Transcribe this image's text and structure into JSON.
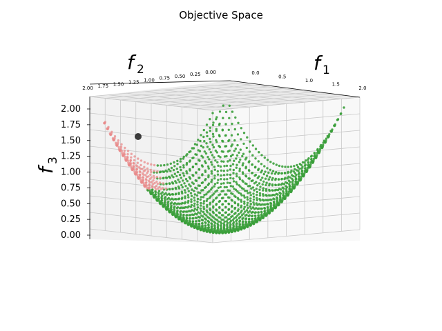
{
  "chart_data": {
    "type": "scatter",
    "projection": "3d",
    "title": "Objective Space",
    "axes": {
      "f1": {
        "label": "f",
        "subscript": "1",
        "range": [
          0,
          2
        ],
        "ticks": [
          "0.0",
          "0.5",
          "1.0",
          "1.5",
          "2.0"
        ]
      },
      "f2": {
        "label": "f",
        "subscript": "2",
        "range": [
          0,
          2
        ],
        "ticks": [
          "0.00",
          "0.25",
          "0.50",
          "0.75",
          "1.00",
          "1.25",
          "1.50",
          "1.75",
          "2.00"
        ]
      },
      "f3": {
        "label": "f",
        "subscript": "3",
        "range": [
          0,
          2
        ],
        "ticks": [
          "0.00",
          "0.25",
          "0.50",
          "0.75",
          "1.00",
          "1.25",
          "1.50",
          "1.75",
          "2.00"
        ]
      }
    },
    "grid": true,
    "series": [
      {
        "description": "surface f3 = ((f1-1)^2 + (f2-1)^2)/? sampled on a grid, green region",
        "color": "#3a9e3a",
        "marker": "dot"
      },
      {
        "description": "same surface, red/pink region",
        "color": "#e88a8a",
        "marker": "dot"
      }
    ],
    "highlight_point": {
      "f1": 0.0,
      "f2": 1.5,
      "f3": 1.55,
      "color": "#000000"
    }
  }
}
